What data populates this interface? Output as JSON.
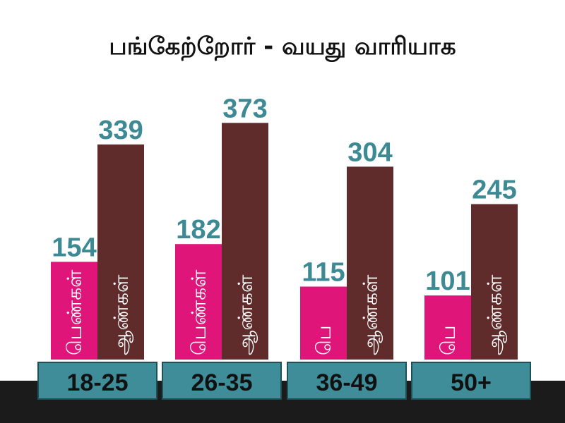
{
  "colors": {
    "women": "#e0157a",
    "men": "#5f2b2b",
    "value_text": "#3d8a94",
    "label_box": "#3e8d99",
    "label_box_border": "#1f4f57",
    "footer_band": "#1b1b1b",
    "bar_label_text": "#ffffff"
  },
  "chart_data": {
    "type": "bar",
    "title": "பங்கேற்றோர் - வயது வாரியாக",
    "categories": [
      "18-25",
      "26-35",
      "36-49",
      "50+"
    ],
    "ylim": [
      0,
      400
    ],
    "series": [
      {
        "name": "பெண்கள்",
        "values": [
          154,
          182,
          115,
          101
        ],
        "bar_labels": [
          "பெண்கள்",
          "பெண்கள்",
          "பெ",
          "பெ"
        ]
      },
      {
        "name": "ஆண்கள்",
        "values": [
          339,
          373,
          304,
          245
        ],
        "bar_labels": [
          "ஆண்கள்",
          "ஆண்கள்",
          "ஆண்கள்",
          "ஆண்கள்"
        ]
      }
    ],
    "legend": "none",
    "grid": false
  }
}
